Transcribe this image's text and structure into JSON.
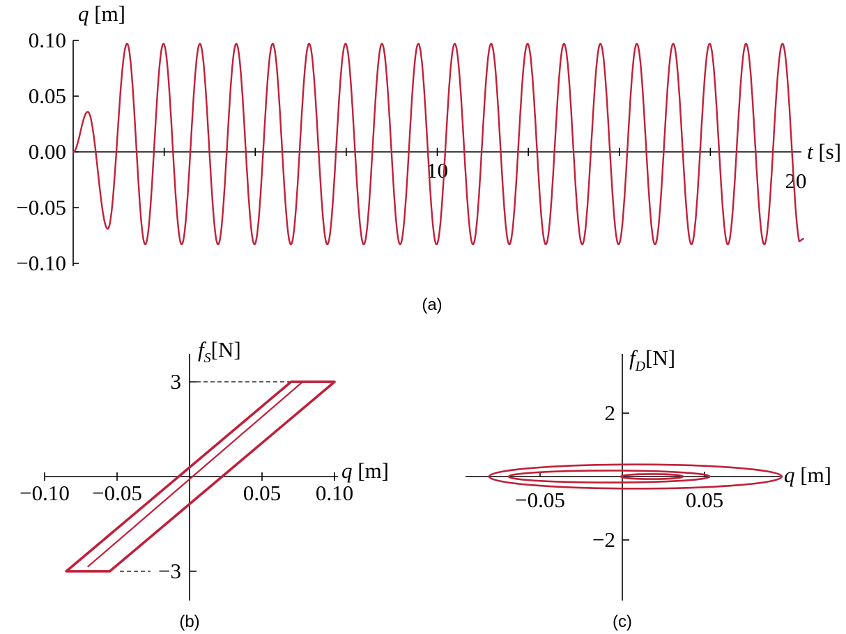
{
  "chart_data": [
    {
      "panel": "(a)",
      "type": "line",
      "xlabel_var": "t",
      "xlabel_unit": "[s]",
      "ylabel_var": "q",
      "ylabel_unit": "[m]",
      "xlim": [
        0,
        20
      ],
      "ylim": [
        -0.1,
        0.1
      ],
      "xticks": [
        2.5,
        5,
        7.5,
        10,
        12.5,
        15,
        17.5
      ],
      "xtick_labels": [
        {
          "value": 10,
          "label": "10"
        },
        {
          "value": 20,
          "label": "20"
        }
      ],
      "yticks": [
        0.1,
        0.05,
        0.0,
        -0.05,
        -0.1
      ],
      "ytick_labels": [
        "0.10",
        "0.05",
        "0.00",
        "−0.05",
        "−0.10"
      ],
      "series": [
        {
          "color": "#c0203a",
          "description_values": {
            "first_peak": 0.036,
            "first_trough": -0.069,
            "steady_max": 0.097,
            "steady_min": -0.083,
            "period_s": 1.0,
            "end_value": -0.078
          }
        }
      ]
    },
    {
      "panel": "(b)",
      "type": "line",
      "xlabel_var": "q",
      "xlabel_unit": "[m]",
      "ylabel_var": "f",
      "ylabel_sub": "S",
      "ylabel_unit": "[N]",
      "xlim": [
        -0.1,
        0.1
      ],
      "ylim": [
        -3.5,
        3.5
      ],
      "xticks": [
        -0.1,
        -0.05,
        0.05,
        0.1
      ],
      "xtick_labels": [
        "−0.10",
        "−0.05",
        "0.05",
        "0.10"
      ],
      "yticks": [
        3,
        -3
      ],
      "ytick_labels": [
        "3",
        "−3"
      ],
      "series": [
        {
          "name": "outer loop",
          "x": [
            -0.085,
            -0.055,
            0.1,
            0.07,
            -0.085
          ],
          "y": [
            -3,
            -3,
            3,
            3,
            -3
          ]
        },
        {
          "name": "inner branch",
          "x": [
            -0.07,
            0.078
          ],
          "y": [
            -2.85,
            3
          ]
        }
      ]
    },
    {
      "panel": "(c)",
      "type": "line",
      "xlabel_var": "q",
      "xlabel_unit": "[m]",
      "ylabel_var": "f",
      "ylabel_sub": "D",
      "ylabel_unit": "[N]",
      "xlim": [
        -0.1,
        0.13
      ],
      "ylim": [
        -3.5,
        3.5
      ],
      "xticks": [
        -0.05,
        0.05
      ],
      "xtick_labels": [
        "−0.05",
        "0.05"
      ],
      "yticks": [
        2,
        -2
      ],
      "ytick_labels": [
        "2",
        "−2"
      ],
      "series": [
        {
          "name": "outer ellipse",
          "center_x": 0.008,
          "half_width": 0.089,
          "half_height": 0.38
        },
        {
          "name": "middle ellipse",
          "center_x": -0.008,
          "half_width": 0.061,
          "half_height": 0.19
        },
        {
          "name": "inner ellipse",
          "center_x": 0.018,
          "half_width": 0.019,
          "half_height": 0.08
        }
      ]
    }
  ],
  "captions": [
    "(a)",
    "(b)",
    "(c)"
  ]
}
